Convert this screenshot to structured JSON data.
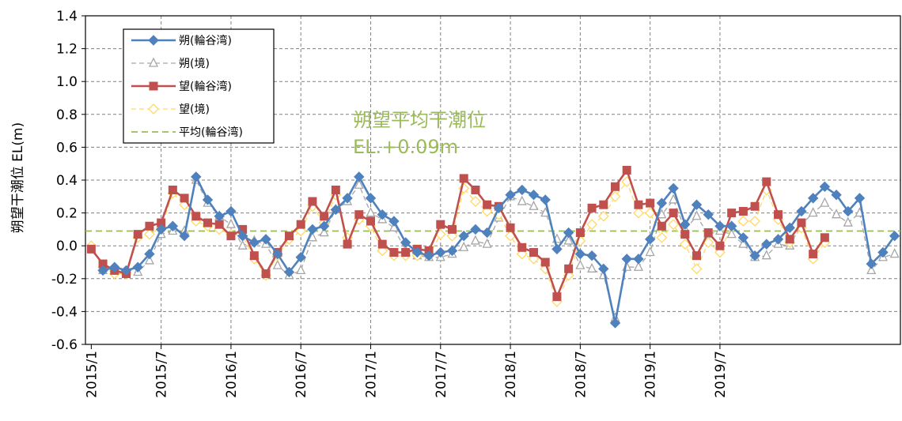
{
  "chart_data": {
    "type": "line",
    "ylabel": "朔望干潮位 EL(m)",
    "ylim": [
      -0.6,
      1.4
    ],
    "yticks": [
      "-0.6",
      "-0.4",
      "-0.2",
      "0.0",
      "0.2",
      "0.4",
      "0.6",
      "0.8",
      "1.0",
      "1.2",
      "1.4"
    ],
    "xticks": [
      "2015/1",
      "2015/7",
      "2016/1",
      "2016/7",
      "2017/1",
      "2017/7",
      "2018/1",
      "2018/7",
      "2019/1",
      "2019/7"
    ],
    "grid": true,
    "legend_position": "top-left",
    "annotation": [
      "朔望平均干潮位",
      "EL.+0.09m"
    ],
    "reference_line": {
      "name": "平均(輪谷湾)",
      "value": 0.09,
      "color": "#9bbb59"
    },
    "series": [
      {
        "name": "朔(輪谷湾)",
        "color": "#4f81bd",
        "marker": "diamond",
        "dash": "",
        "values": [
          null,
          -0.15,
          -0.13,
          -0.15,
          -0.13,
          -0.05,
          0.1,
          0.12,
          0.06,
          0.42,
          0.28,
          0.18,
          0.21,
          0.06,
          0.02,
          0.04,
          -0.05,
          -0.16,
          -0.07,
          0.1,
          0.12,
          0.22,
          0.29,
          0.42,
          0.29,
          0.19,
          0.15,
          0.02,
          -0.04,
          -0.06,
          -0.04,
          -0.03,
          0.06,
          0.1,
          0.08,
          0.23,
          0.31,
          0.34,
          0.31,
          0.28,
          -0.02,
          0.08,
          -0.05,
          -0.06,
          -0.14,
          -0.47,
          -0.08,
          -0.08,
          0.04,
          0.26,
          0.35,
          0.13,
          0.25,
          0.19,
          0.12,
          0.12,
          0.05,
          -0.06,
          0.01,
          0.04,
          0.11,
          0.21,
          0.29,
          0.36,
          0.31,
          0.21,
          0.29,
          -0.11,
          -0.04,
          0.06
        ]
      },
      {
        "name": "朔(境)",
        "color": "#a6a6a6",
        "marker": "triangle",
        "dash": "6,4",
        "values": [
          null,
          -0.15,
          -0.15,
          -0.16,
          -0.16,
          -0.09,
          0.07,
          0.09,
          0.09,
          0.4,
          0.26,
          0.18,
          0.13,
          0.0,
          0.03,
          0.01,
          -0.12,
          -0.18,
          -0.15,
          0.05,
          0.08,
          0.22,
          0.27,
          0.37,
          0.2,
          0.16,
          0.11,
          -0.03,
          -0.06,
          -0.07,
          -0.07,
          -0.05,
          -0.01,
          0.03,
          0.01,
          0.17,
          0.3,
          0.27,
          0.24,
          0.2,
          0.04,
          0.03,
          -0.12,
          -0.14,
          -0.18,
          -0.44,
          -0.13,
          -0.13,
          -0.04,
          0.19,
          0.28,
          0.1,
          0.18,
          0.07,
          0.09,
          0.07,
          0.01,
          -0.07,
          -0.06,
          0.01,
          0.0,
          0.13,
          0.2,
          0.26,
          0.19,
          0.14,
          0.2,
          -0.15,
          -0.07,
          -0.05
        ]
      },
      {
        "name": "望(輪谷湾)",
        "color": "#c0504d",
        "marker": "square",
        "dash": "",
        "values": [
          -0.02,
          -0.11,
          -0.15,
          -0.17,
          0.07,
          0.12,
          0.14,
          0.34,
          0.29,
          0.18,
          0.14,
          0.13,
          0.06,
          0.1,
          -0.06,
          -0.17,
          -0.04,
          0.06,
          0.13,
          0.27,
          0.18,
          0.34,
          0.01,
          0.19,
          0.15,
          0.01,
          -0.04,
          -0.04,
          -0.02,
          -0.03,
          0.13,
          0.1,
          0.41,
          0.34,
          0.25,
          0.24,
          0.11,
          -0.01,
          -0.04,
          -0.1,
          -0.31,
          -0.14,
          0.08,
          0.23,
          0.25,
          0.36,
          0.46,
          0.25,
          0.26,
          0.12,
          0.2,
          0.07,
          -0.06,
          0.08,
          0.0,
          0.2,
          0.21,
          0.24,
          0.39,
          0.19,
          0.04,
          0.14,
          -0.05,
          0.05
        ]
      },
      {
        "name": "望(境)",
        "color": "#ffd966",
        "marker": "diamond-open",
        "dash": "6,4",
        "values": [
          0.0,
          -0.13,
          -0.17,
          -0.17,
          0.05,
          0.07,
          0.11,
          0.32,
          0.25,
          0.15,
          0.12,
          0.1,
          0.07,
          0.06,
          -0.08,
          -0.18,
          -0.06,
          0.04,
          0.09,
          0.24,
          0.14,
          0.31,
          0.05,
          0.16,
          0.12,
          -0.03,
          -0.06,
          -0.06,
          -0.06,
          -0.06,
          0.07,
          0.06,
          0.35,
          0.27,
          0.21,
          0.19,
          0.06,
          -0.05,
          -0.08,
          -0.14,
          -0.34,
          -0.18,
          0.03,
          0.13,
          0.18,
          0.3,
          0.39,
          0.2,
          0.2,
          0.05,
          0.13,
          0.01,
          -0.14,
          0.02,
          -0.04,
          0.12,
          0.15,
          0.15,
          0.34,
          0.16,
          0.02,
          0.11,
          -0.08,
          0.02
        ]
      }
    ]
  }
}
